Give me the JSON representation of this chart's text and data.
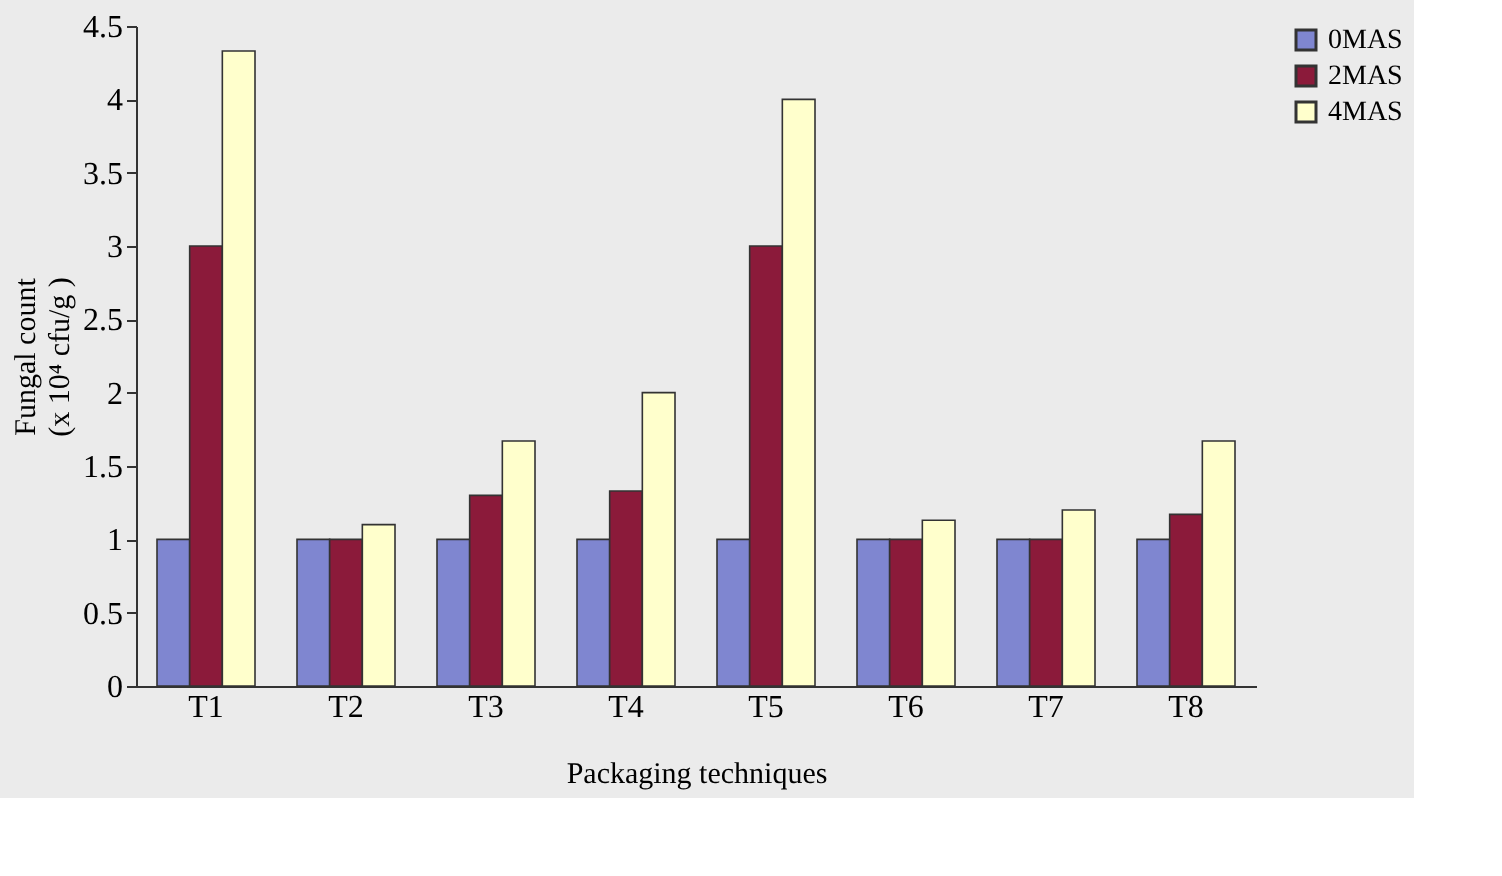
{
  "chart_data": {
    "type": "bar",
    "xlabel": "Packaging techniques",
    "ylabel": "Fungal count\n(x 10⁴ cfu/g )",
    "categories": [
      "T1",
      "T2",
      "T3",
      "T4",
      "T5",
      "T6",
      "T7",
      "T8"
    ],
    "series": [
      {
        "name": "0MAS",
        "color": "#7f86d0",
        "values": [
          1,
          1,
          1,
          1,
          1,
          1,
          1,
          1
        ]
      },
      {
        "name": "2MAS",
        "color": "#8b1a3a",
        "values": [
          3,
          1,
          1.3,
          1.33,
          3,
          1,
          1,
          1.17
        ]
      },
      {
        "name": "4MAS",
        "color": "#ffffcc",
        "values": [
          4.33,
          1.1,
          1.67,
          2,
          4,
          1.13,
          1.2,
          1.67
        ]
      }
    ],
    "ylim": [
      0,
      4.5
    ],
    "yticks": [
      0,
      0.5,
      1,
      1.5,
      2,
      2.5,
      3,
      3.5,
      4,
      4.5
    ],
    "grid": false,
    "legend": "right"
  }
}
